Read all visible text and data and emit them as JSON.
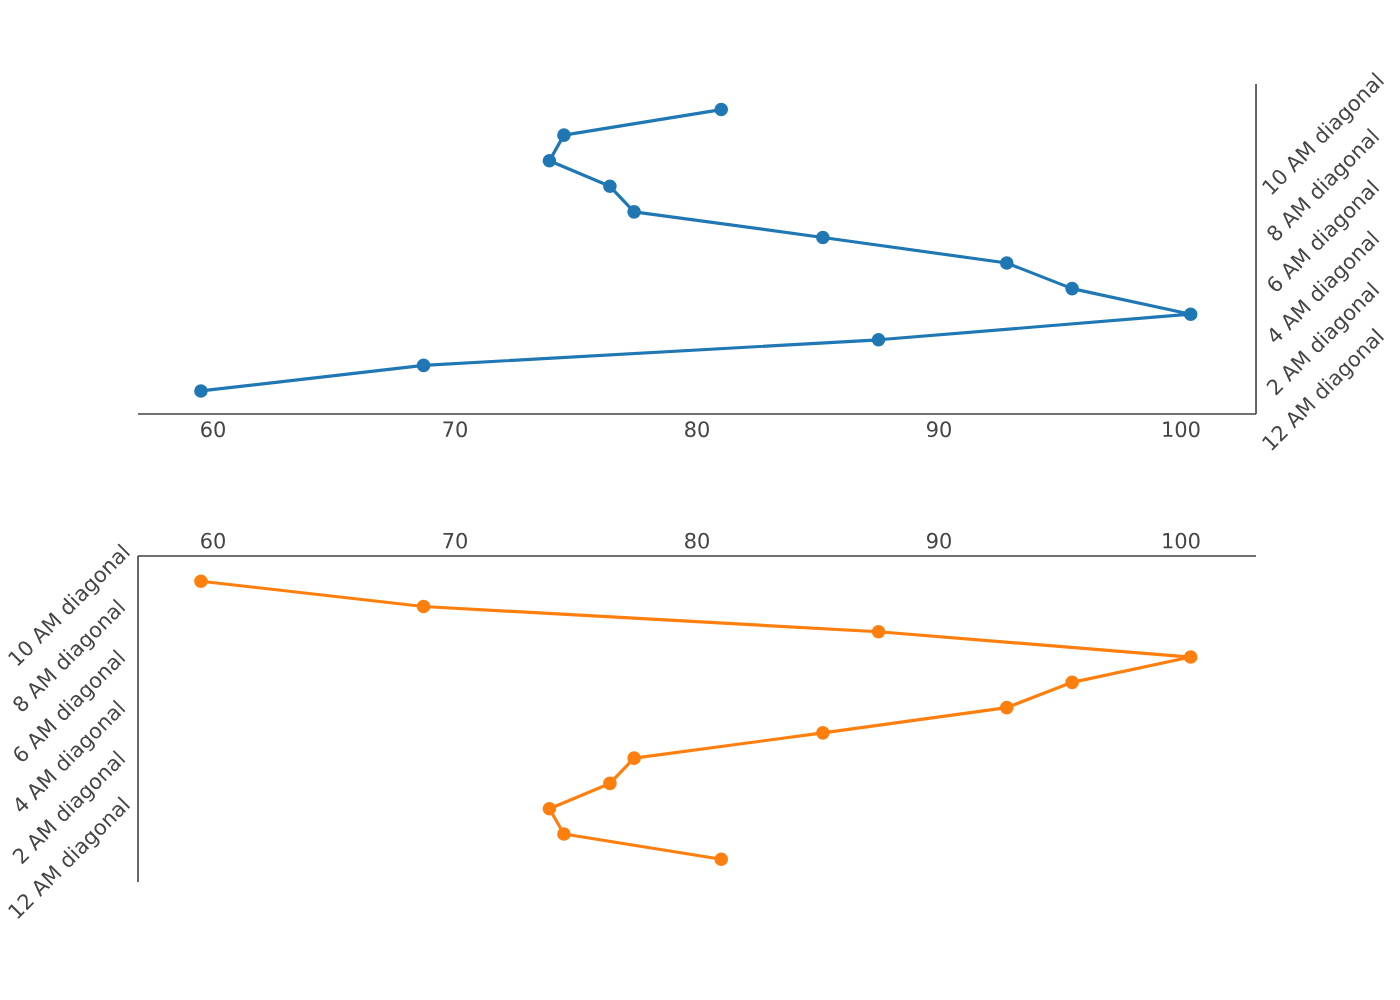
{
  "chart_data": [
    {
      "type": "line",
      "orientation": "horizontal",
      "marker": "circle",
      "line_style": "solid",
      "grid": false,
      "categories": [
        null,
        "10 AM diagonal",
        null,
        "8 AM diagonal",
        null,
        "6 AM diagonal",
        null,
        "4 AM diagonal",
        null,
        "2 AM diagonal",
        null,
        "12 AM diagonal"
      ],
      "series": [
        {
          "color": "#1f77b4",
          "values": [
            81.0,
            74.5,
            73.9,
            76.4,
            77.4,
            85.2,
            92.8,
            95.5,
            100.4,
            87.5,
            68.7,
            59.5
          ]
        }
      ],
      "xlim": [
        56.9,
        103.1
      ],
      "xticks": [
        60,
        70,
        80,
        90,
        100
      ]
    },
    {
      "type": "line",
      "orientation": "horizontal",
      "marker": "circle",
      "line_style": "solid",
      "grid": false,
      "categories": [
        null,
        "10 AM diagonal",
        null,
        "8 AM diagonal",
        null,
        "6 AM diagonal",
        null,
        "4 AM diagonal",
        null,
        "2 AM diagonal",
        null,
        "12 AM diagonal"
      ],
      "series": [
        {
          "color": "#ff7f0e",
          "values": [
            59.5,
            68.7,
            87.5,
            100.4,
            95.5,
            92.8,
            85.2,
            77.4,
            76.4,
            73.9,
            74.5,
            81.0
          ]
        }
      ],
      "xlim": [
        56.9,
        103.1
      ],
      "xticks": [
        60,
        70,
        80,
        90,
        100
      ]
    }
  ]
}
